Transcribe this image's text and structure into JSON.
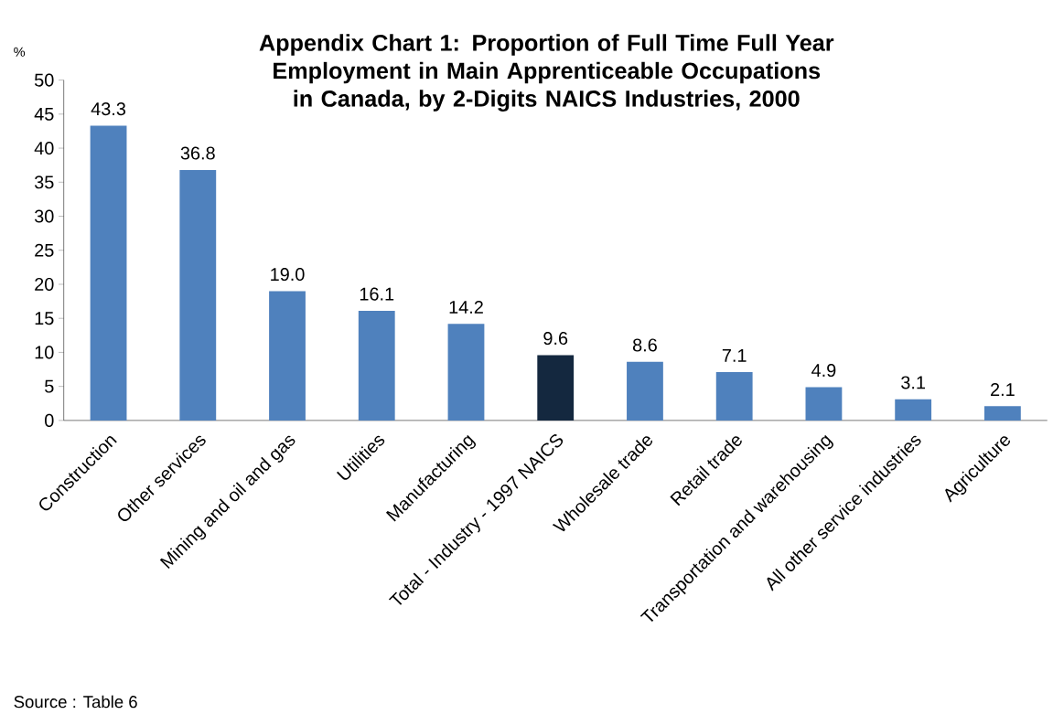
{
  "chart_data": {
    "type": "bar",
    "title": "Appendix Chart 1: Proportion of Full Time Full Year Employment in Main Apprenticeable Occupations in Canada, by 2-Digits NAICS Industries, 2000",
    "ylabel": "%",
    "categories": [
      "Construction",
      "Other services",
      "Mining and oil and gas",
      "Utilities",
      "Manufacturing",
      "Total - Industry - 1997 NAICS",
      "Wholesale trade",
      "Retail trade",
      "Transportation and warehousing",
      "All other service industries",
      "Agriculture"
    ],
    "values": [
      43.3,
      36.8,
      19.0,
      16.1,
      14.2,
      9.6,
      8.6,
      7.1,
      4.9,
      3.1,
      2.1
    ],
    "value_labels": [
      "43.3",
      "36.8",
      "19.0",
      "16.1",
      "14.2",
      "9.6",
      "8.6",
      "7.1",
      "4.9",
      "3.1",
      "2.1"
    ],
    "colors": [
      "#4f81bd",
      "#4f81bd",
      "#4f81bd",
      "#4f81bd",
      "#4f81bd",
      "#14283f",
      "#4f81bd",
      "#4f81bd",
      "#4f81bd",
      "#4f81bd",
      "#4f81bd"
    ],
    "ylim": [
      0,
      50
    ],
    "yticks": [
      0,
      5,
      10,
      15,
      20,
      25,
      30,
      35,
      40,
      45,
      50
    ],
    "annotations": [
      "Source : Table 6"
    ]
  }
}
